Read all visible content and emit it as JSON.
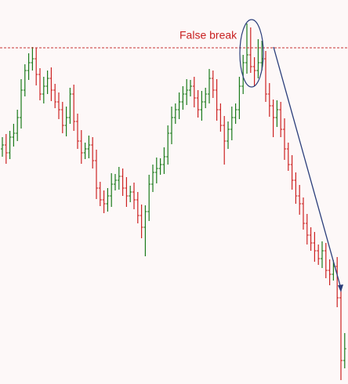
{
  "chart_data": {
    "type": "ohlc",
    "annotation": "False break",
    "up_color": "#1a7a1a",
    "down_color": "#cc2222",
    "resistance_color": "#c83232",
    "ylim": [
      0,
      490
    ],
    "resistance": 429,
    "open": [
      300,
      305,
      295,
      315,
      320,
      340,
      375,
      400,
      410,
      415,
      395,
      370,
      380,
      390,
      375,
      360,
      350,
      330,
      340,
      370,
      335,
      310,
      295,
      300,
      305,
      285,
      250,
      235,
      230,
      240,
      255,
      260,
      265,
      250,
      240,
      245,
      235,
      215,
      200,
      220,
      255,
      270,
      275,
      280,
      290,
      320,
      340,
      350,
      360,
      370,
      375,
      380,
      365,
      350,
      360,
      370,
      390,
      375,
      350,
      330,
      310,
      325,
      340,
      350,
      380,
      410,
      420,
      405,
      400,
      410,
      415,
      370,
      355,
      340,
      350,
      325,
      300,
      280,
      260,
      240,
      230,
      205,
      190,
      180,
      170,
      160,
      170,
      145,
      140,
      150,
      110,
      30
    ],
    "high": [
      315,
      319,
      323,
      332,
      350,
      389,
      408,
      422,
      430,
      429,
      403,
      392,
      400,
      404,
      383,
      372,
      360,
      354,
      378,
      382,
      345,
      324,
      308,
      317,
      315,
      299,
      258,
      247,
      250,
      269,
      268,
      277,
      275,
      264,
      253,
      257,
      245,
      229,
      228,
      267,
      280,
      289,
      288,
      302,
      330,
      354,
      358,
      372,
      380,
      389,
      388,
      392,
      375,
      374,
      378,
      402,
      400,
      389,
      358,
      342,
      335,
      354,
      358,
      392,
      420,
      460,
      455,
      417,
      440,
      438,
      425,
      384,
      363,
      362,
      360,
      339,
      308,
      292,
      270,
      254,
      238,
      217,
      200,
      194,
      178,
      182,
      180,
      159,
      158,
      162,
      124,
      65
    ],
    "low": [
      290,
      281,
      287,
      303,
      310,
      326,
      367,
      388,
      400,
      381,
      362,
      358,
      370,
      361,
      352,
      338,
      320,
      316,
      332,
      323,
      300,
      281,
      287,
      288,
      275,
      236,
      227,
      218,
      220,
      226,
      247,
      248,
      240,
      226,
      232,
      223,
      205,
      186,
      163,
      208,
      245,
      256,
      267,
      268,
      280,
      306,
      332,
      338,
      350,
      356,
      367,
      353,
      340,
      336,
      352,
      358,
      365,
      336,
      322,
      280,
      300,
      311,
      332,
      338,
      370,
      396,
      397,
      380,
      390,
      400,
      360,
      341,
      315,
      328,
      315,
      286,
      272,
      248,
      230,
      216,
      197,
      178,
      170,
      156,
      152,
      148,
      135,
      126,
      132,
      98,
      5,
      20
    ],
    "close": [
      305,
      295,
      315,
      320,
      340,
      375,
      400,
      410,
      415,
      395,
      370,
      380,
      390,
      375,
      360,
      350,
      330,
      340,
      370,
      335,
      310,
      295,
      300,
      305,
      285,
      250,
      235,
      230,
      240,
      255,
      260,
      265,
      250,
      240,
      245,
      235,
      215,
      200,
      220,
      255,
      270,
      275,
      280,
      290,
      320,
      340,
      350,
      360,
      370,
      375,
      380,
      365,
      350,
      360,
      370,
      390,
      375,
      350,
      330,
      310,
      325,
      340,
      350,
      380,
      410,
      420,
      405,
      400,
      410,
      415,
      370,
      355,
      340,
      350,
      325,
      300,
      280,
      260,
      240,
      230,
      205,
      190,
      180,
      170,
      160,
      170,
      145,
      140,
      150,
      110,
      30,
      45
    ]
  }
}
